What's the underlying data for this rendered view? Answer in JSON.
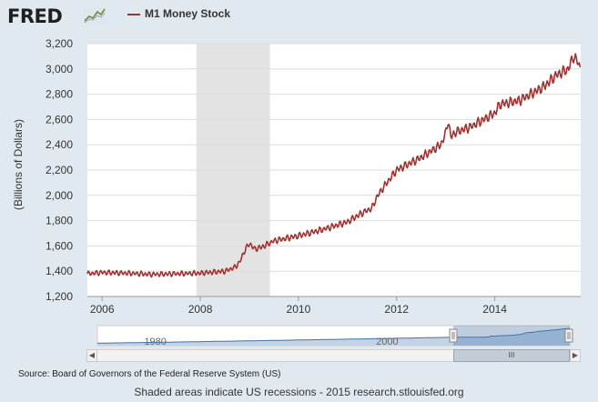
{
  "header": {
    "logo_text": "FRED",
    "logo_icon": "chart-trend-icon"
  },
  "legend": {
    "series_label": "M1 Money Stock",
    "series_color": "#a0322f"
  },
  "navigator": {
    "tick_labels": [
      "1980",
      "2000"
    ],
    "left_arrow": "◀",
    "right_arrow": "▶",
    "thumb_grip": "III"
  },
  "source": "Source: Board of Governors of the Federal Reserve System (US)",
  "footer": "Shaded areas indicate US recessions - 2015 research.stlouisfed.org",
  "chart_data": {
    "type": "line",
    "title": "",
    "xlabel": "",
    "ylabel": "(Billions of Dollars)",
    "ylim": [
      1200,
      3200
    ],
    "y_ticks": [
      1200,
      1400,
      1600,
      1800,
      2000,
      2200,
      2400,
      2600,
      2800,
      3000,
      3200
    ],
    "y_tick_labels": [
      "1,200",
      "1,400",
      "1,600",
      "1,800",
      "2,000",
      "2,200",
      "2,400",
      "2,600",
      "2,800",
      "3,000",
      "3,200"
    ],
    "xlim": [
      2005.7,
      2015.75
    ],
    "x_ticks": [
      2006,
      2008,
      2010,
      2012,
      2014
    ],
    "x_tick_labels": [
      "2006",
      "2008",
      "2010",
      "2012",
      "2014"
    ],
    "grid": true,
    "recession_shading": [
      [
        2007.92,
        2009.42
      ]
    ],
    "series": [
      {
        "name": "M1 Money Stock",
        "color": "#a0322f",
        "x": [
          2005.7,
          2006.0,
          2006.5,
          2007.0,
          2007.5,
          2008.0,
          2008.5,
          2008.7,
          2008.8,
          2008.9,
          2009.0,
          2009.05,
          2009.1,
          2009.25,
          2009.5,
          2010.0,
          2010.5,
          2011.0,
          2011.25,
          2011.5,
          2011.6,
          2011.8,
          2012.0,
          2012.5,
          2012.9,
          2013.0,
          2013.05,
          2013.1,
          2013.2,
          2013.5,
          2014.0,
          2014.1,
          2014.5,
          2015.0,
          2015.25,
          2015.5,
          2015.6,
          2015.7,
          2015.75
        ],
        "values": [
          1380,
          1390,
          1385,
          1375,
          1380,
          1385,
          1400,
          1430,
          1470,
          1560,
          1620,
          1600,
          1575,
          1590,
          1640,
          1680,
          1730,
          1790,
          1850,
          1900,
          1990,
          2100,
          2200,
          2300,
          2400,
          2490,
          2600,
          2460,
          2500,
          2540,
          2650,
          2720,
          2750,
          2860,
          2950,
          3000,
          3100,
          3050,
          2990
        ]
      }
    ]
  }
}
